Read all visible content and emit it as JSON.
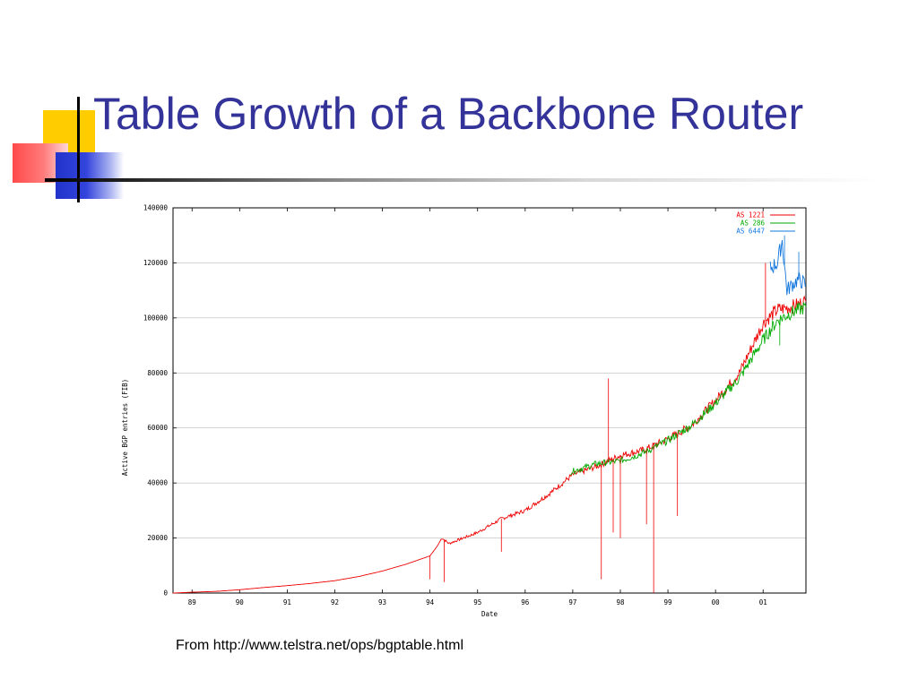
{
  "slide": {
    "title": "Table Growth of a Backbone Router",
    "source": "From http://www.telstra.net/ops/bgptable.html"
  },
  "chart_data": {
    "type": "line",
    "title": "",
    "xlabel": "Date",
    "ylabel": "Active BGP entries (FIB)",
    "x_ticks": [
      "89",
      "90",
      "91",
      "92",
      "93",
      "94",
      "95",
      "96",
      "97",
      "98",
      "99",
      "00",
      "01"
    ],
    "y_ticks": [
      "0",
      "20000",
      "40000",
      "60000",
      "80000",
      "100000",
      "120000",
      "140000"
    ],
    "xlim": [
      1988.6,
      2001.9
    ],
    "ylim": [
      0,
      140000
    ],
    "grid": true,
    "legend": "top-right",
    "series": [
      {
        "name": "AS 1221",
        "color": "#ee0000",
        "x": [
          1988.6,
          1989.0,
          1989.5,
          1990.0,
          1990.5,
          1991.0,
          1991.5,
          1992.0,
          1992.5,
          1993.0,
          1993.5,
          1994.0,
          1994.15,
          1994.25,
          1994.4,
          1994.7,
          1995.0,
          1995.5,
          1996.0,
          1996.5,
          1997.0,
          1997.5,
          1998.0,
          1998.5,
          1999.0,
          1999.5,
          2000.0,
          2000.5,
          2001.0,
          2001.3,
          2001.6,
          2001.9
        ],
        "y": [
          0,
          300,
          600,
          1200,
          2000,
          2700,
          3500,
          4500,
          6000,
          8000,
          10500,
          13500,
          17000,
          20000,
          18000,
          20000,
          22000,
          27000,
          30000,
          36000,
          43000,
          46000,
          50000,
          52000,
          56000,
          61000,
          70000,
          80000,
          98000,
          103000,
          104000,
          106000
        ]
      },
      {
        "name": "AS 286",
        "color": "#00aa00",
        "x": [
          1996.95,
          1997.5,
          1998.0,
          1998.5,
          1999.0,
          1999.5,
          2000.0,
          2000.5,
          2001.0,
          2001.3,
          2001.6,
          2001.9
        ],
        "y": [
          44000,
          47000,
          48000,
          51000,
          55500,
          61000,
          69000,
          78000,
          92000,
          99000,
          102000,
          104000
        ]
      },
      {
        "name": "AS 6447",
        "color": "#1177dd",
        "x": [
          2001.15,
          2001.3,
          2001.4,
          2001.5,
          2001.6,
          2001.75,
          2001.9
        ],
        "y": [
          118000,
          120000,
          128000,
          110000,
          112000,
          114000,
          112000
        ]
      }
    ],
    "spikes": [
      {
        "series": "AS 1221",
        "x": 1994.0,
        "y": 5000
      },
      {
        "series": "AS 1221",
        "x": 1994.3,
        "y": 4000
      },
      {
        "series": "AS 1221",
        "x": 1995.5,
        "y": 15000
      },
      {
        "series": "AS 1221",
        "x": 1997.6,
        "y": 5000
      },
      {
        "series": "AS 1221",
        "x": 1997.75,
        "y": 78000
      },
      {
        "series": "AS 1221",
        "x": 1997.85,
        "y": 22000
      },
      {
        "series": "AS 1221",
        "x": 1998.0,
        "y": 20000
      },
      {
        "series": "AS 1221",
        "x": 1998.55,
        "y": 25000
      },
      {
        "series": "AS 1221",
        "x": 1998.7,
        "y": 0
      },
      {
        "series": "AS 1221",
        "x": 1999.2,
        "y": 28000
      },
      {
        "series": "AS 1221",
        "x": 2001.05,
        "y": 120000
      },
      {
        "series": "AS 6447",
        "x": 2001.45,
        "y": 130000
      },
      {
        "series": "AS 6447",
        "x": 2001.75,
        "y": 124000
      },
      {
        "series": "AS 286",
        "x": 2001.35,
        "y": 90000
      }
    ]
  }
}
